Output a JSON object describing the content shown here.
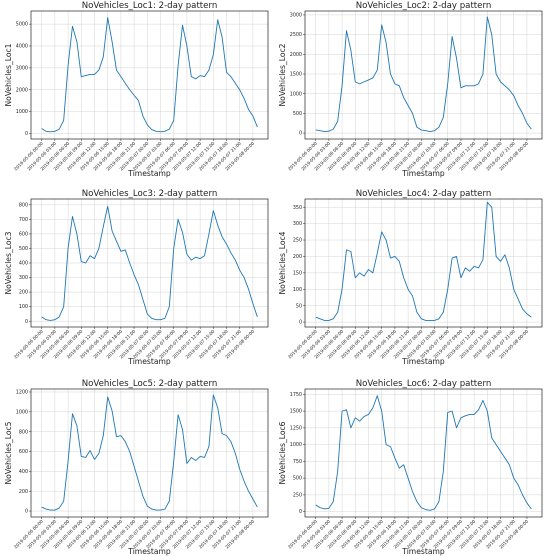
{
  "chart_data": [
    {
      "type": "line",
      "title": "NoVehicles_Loc1: 2-day pattern",
      "xlabel": "Timestamp",
      "ylabel": "NoVehicles_Loc1",
      "color": "#1f77b4",
      "yticks": [
        0,
        1000,
        2000,
        3000,
        4000,
        5000
      ],
      "ylim": [
        -250,
        5600
      ],
      "x_labels": [
        "2019-05-06 00:00",
        "2019-05-06 03:00",
        "2019-05-06 06:00",
        "2019-05-06 09:00",
        "2019-05-06 12:00",
        "2019-05-06 15:00",
        "2019-05-06 18:00",
        "2019-05-06 21:00",
        "2019-05-07 00:00",
        "2019-05-07 03:00",
        "2019-05-07 06:00",
        "2019-05-07 09:00",
        "2019-05-07 12:00",
        "2019-05-07 15:00",
        "2019-05-07 18:00",
        "2019-05-07 21:00",
        "2019-05-08 00:00"
      ],
      "values": [
        230,
        100,
        80,
        100,
        200,
        600,
        3100,
        4900,
        4200,
        2600,
        2650,
        2700,
        2700,
        2900,
        3500,
        5300,
        4200,
        2900,
        2600,
        2300,
        2000,
        1750,
        1500,
        800,
        400,
        180,
        100,
        80,
        100,
        200,
        600,
        3100,
        4950,
        4000,
        2600,
        2500,
        2650,
        2600,
        2900,
        3600,
        5200,
        4400,
        2800,
        2600,
        2300,
        2000,
        1600,
        1100,
        800,
        300
      ]
    },
    {
      "type": "line",
      "title": "NoVehicles_Loc2: 2-day pattern",
      "xlabel": "Timestamp",
      "ylabel": "NoVehicles_Loc2",
      "color": "#1f77b4",
      "yticks": [
        0,
        500,
        1000,
        1500,
        2000,
        2500,
        3000
      ],
      "ylim": [
        -150,
        3100
      ],
      "x_labels": [
        "2019-05-06 00:00",
        "2019-05-06 03:00",
        "2019-05-06 06:00",
        "2019-05-06 09:00",
        "2019-05-06 12:00",
        "2019-05-06 15:00",
        "2019-05-06 18:00",
        "2019-05-06 21:00",
        "2019-05-07 00:00",
        "2019-05-07 03:00",
        "2019-05-07 06:00",
        "2019-05-07 09:00",
        "2019-05-07 12:00",
        "2019-05-07 15:00",
        "2019-05-07 18:00",
        "2019-05-07 21:00",
        "2019-05-08 00:00"
      ],
      "values": [
        80,
        60,
        40,
        50,
        100,
        300,
        1200,
        2600,
        2100,
        1300,
        1250,
        1300,
        1350,
        1400,
        1600,
        2750,
        2300,
        1500,
        1250,
        1200,
        900,
        700,
        500,
        150,
        80,
        60,
        40,
        60,
        150,
        400,
        1250,
        2450,
        1900,
        1150,
        1200,
        1200,
        1200,
        1250,
        1500,
        2950,
        2500,
        1500,
        1300,
        1200,
        1100,
        950,
        700,
        500,
        250,
        100
      ]
    },
    {
      "type": "line",
      "title": "NoVehicles_Loc3: 2-day pattern",
      "xlabel": "Timestamp",
      "ylabel": "NoVehicles_Loc3",
      "color": "#1f77b4",
      "yticks": [
        0,
        100,
        200,
        300,
        400,
        500,
        600,
        700,
        800
      ],
      "ylim": [
        -40,
        840
      ],
      "x_labels": [
        "2019-05-06 00:00",
        "2019-05-06 03:00",
        "2019-05-06 06:00",
        "2019-05-06 09:00",
        "2019-05-06 12:00",
        "2019-05-06 15:00",
        "2019-05-06 18:00",
        "2019-05-06 21:00",
        "2019-05-07 00:00",
        "2019-05-07 03:00",
        "2019-05-07 06:00",
        "2019-05-07 09:00",
        "2019-05-07 12:00",
        "2019-05-07 15:00",
        "2019-05-07 18:00",
        "2019-05-07 21:00",
        "2019-05-08 00:00"
      ],
      "values": [
        30,
        10,
        5,
        10,
        30,
        100,
        500,
        720,
        600,
        410,
        400,
        450,
        430,
        500,
        650,
        790,
        620,
        550,
        480,
        490,
        400,
        320,
        250,
        150,
        50,
        20,
        10,
        10,
        20,
        100,
        500,
        700,
        610,
        460,
        420,
        440,
        430,
        450,
        600,
        760,
        660,
        580,
        530,
        470,
        420,
        350,
        300,
        220,
        120,
        30
      ]
    },
    {
      "type": "line",
      "title": "NoVehicles_Loc4: 2-day pattern",
      "xlabel": "Timestamp",
      "ylabel": "NoVehicles_Loc4",
      "color": "#1f77b4",
      "yticks": [
        0,
        50,
        100,
        150,
        200,
        250,
        300,
        350
      ],
      "ylim": [
        -15,
        375
      ],
      "x_labels": [
        "2019-05-06 00:00",
        "2019-05-06 03:00",
        "2019-05-06 06:00",
        "2019-05-06 09:00",
        "2019-05-06 12:00",
        "2019-05-06 15:00",
        "2019-05-06 18:00",
        "2019-05-06 21:00",
        "2019-05-07 00:00",
        "2019-05-07 03:00",
        "2019-05-07 06:00",
        "2019-05-07 09:00",
        "2019-05-07 12:00",
        "2019-05-07 15:00",
        "2019-05-07 18:00",
        "2019-05-07 21:00",
        "2019-05-08 00:00"
      ],
      "values": [
        15,
        10,
        5,
        5,
        10,
        30,
        100,
        220,
        215,
        135,
        150,
        140,
        160,
        150,
        210,
        275,
        250,
        195,
        200,
        185,
        135,
        100,
        80,
        30,
        10,
        5,
        5,
        5,
        10,
        30,
        100,
        195,
        200,
        135,
        165,
        155,
        170,
        165,
        190,
        365,
        350,
        200,
        185,
        205,
        165,
        100,
        70,
        40,
        25,
        15
      ]
    },
    {
      "type": "line",
      "title": "NoVehicles_Loc5: 2-day pattern",
      "xlabel": "Timestamp",
      "ylabel": "NoVehicles_Loc5",
      "color": "#1f77b4",
      "yticks": [
        0,
        200,
        400,
        600,
        800,
        1000,
        1200
      ],
      "ylim": [
        -60,
        1230
      ],
      "x_labels": [
        "2019-05-06 00:00",
        "2019-05-06 03:00",
        "2019-05-06 06:00",
        "2019-05-06 09:00",
        "2019-05-06 12:00",
        "2019-05-06 15:00",
        "2019-05-06 18:00",
        "2019-05-06 21:00",
        "2019-05-07 00:00",
        "2019-05-07 03:00",
        "2019-05-07 06:00",
        "2019-05-07 09:00",
        "2019-05-07 12:00",
        "2019-05-07 15:00",
        "2019-05-07 18:00",
        "2019-05-07 21:00",
        "2019-05-08 00:00"
      ],
      "values": [
        40,
        20,
        10,
        10,
        30,
        100,
        500,
        980,
        860,
        550,
        540,
        610,
        520,
        580,
        760,
        1150,
        1010,
        750,
        760,
        700,
        600,
        450,
        300,
        150,
        50,
        20,
        10,
        10,
        20,
        100,
        500,
        970,
        820,
        480,
        540,
        510,
        550,
        540,
        650,
        1170,
        1040,
        780,
        760,
        700,
        580,
        420,
        300,
        200,
        120,
        40
      ]
    },
    {
      "type": "line",
      "title": "NoVehicles_Loc6: 2-day pattern",
      "xlabel": "Timestamp",
      "ylabel": "NoVehicles_Loc6",
      "color": "#1f77b4",
      "yticks": [
        0,
        250,
        500,
        750,
        1000,
        1250,
        1500,
        1750
      ],
      "ylim": [
        -80,
        1830
      ],
      "x_labels": [
        "2019-05-06 00:00",
        "2019-05-06 03:00",
        "2019-05-06 06:00",
        "2019-05-06 09:00",
        "2019-05-06 12:00",
        "2019-05-06 15:00",
        "2019-05-06 18:00",
        "2019-05-06 21:00",
        "2019-05-07 00:00",
        "2019-05-07 03:00",
        "2019-05-07 06:00",
        "2019-05-07 09:00",
        "2019-05-07 12:00",
        "2019-05-07 15:00",
        "2019-05-07 18:00",
        "2019-05-07 21:00",
        "2019-05-08 00:00"
      ],
      "values": [
        100,
        60,
        40,
        50,
        150,
        600,
        1500,
        1520,
        1250,
        1400,
        1350,
        1420,
        1450,
        1550,
        1730,
        1500,
        1000,
        970,
        800,
        650,
        700,
        500,
        300,
        150,
        60,
        30,
        20,
        40,
        150,
        600,
        1480,
        1500,
        1250,
        1400,
        1430,
        1450,
        1450,
        1520,
        1660,
        1500,
        1100,
        1000,
        900,
        800,
        700,
        500,
        400,
        250,
        130,
        40
      ]
    }
  ]
}
